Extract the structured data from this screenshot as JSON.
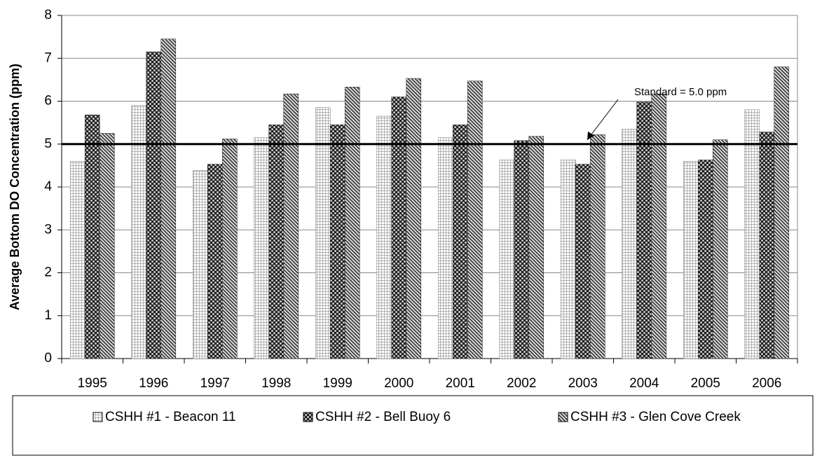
{
  "chart_data": {
    "type": "bar",
    "y_label": "Average Bottom DO Concentration (ppm)",
    "categories": [
      "1995",
      "1996",
      "1997",
      "1998",
      "1999",
      "2000",
      "2001",
      "2002",
      "2003",
      "2004",
      "2005",
      "2006"
    ],
    "series": [
      {
        "name": "CSHH #1 - Beacon 11",
        "color": "#888888",
        "pattern": "grid",
        "values": [
          4.6,
          5.9,
          4.38,
          5.15,
          5.85,
          5.65,
          5.15,
          4.63,
          4.63,
          5.35,
          4.6,
          5.8
        ]
      },
      {
        "name": "CSHH #2 - Bell Buoy 6",
        "color": "#222222",
        "pattern": "checker",
        "values": [
          5.68,
          7.15,
          4.53,
          5.45,
          5.45,
          6.1,
          5.45,
          5.08,
          4.53,
          5.98,
          4.63,
          5.28
        ]
      },
      {
        "name": "CSHH #3 - Glen Cove Creek",
        "color": "#333333",
        "pattern": "hatch",
        "values": [
          5.25,
          7.45,
          5.12,
          6.17,
          6.33,
          6.53,
          6.47,
          5.18,
          5.22,
          6.17,
          5.1,
          6.8
        ]
      }
    ],
    "reference_line": {
      "value": 5,
      "label": "Standard = 5.0 ppm"
    },
    "ylim": [
      0,
      8
    ],
    "yticks": [
      0,
      1,
      2,
      3,
      4,
      5,
      6,
      7,
      8
    ],
    "grid": true,
    "legend": "bottom"
  }
}
